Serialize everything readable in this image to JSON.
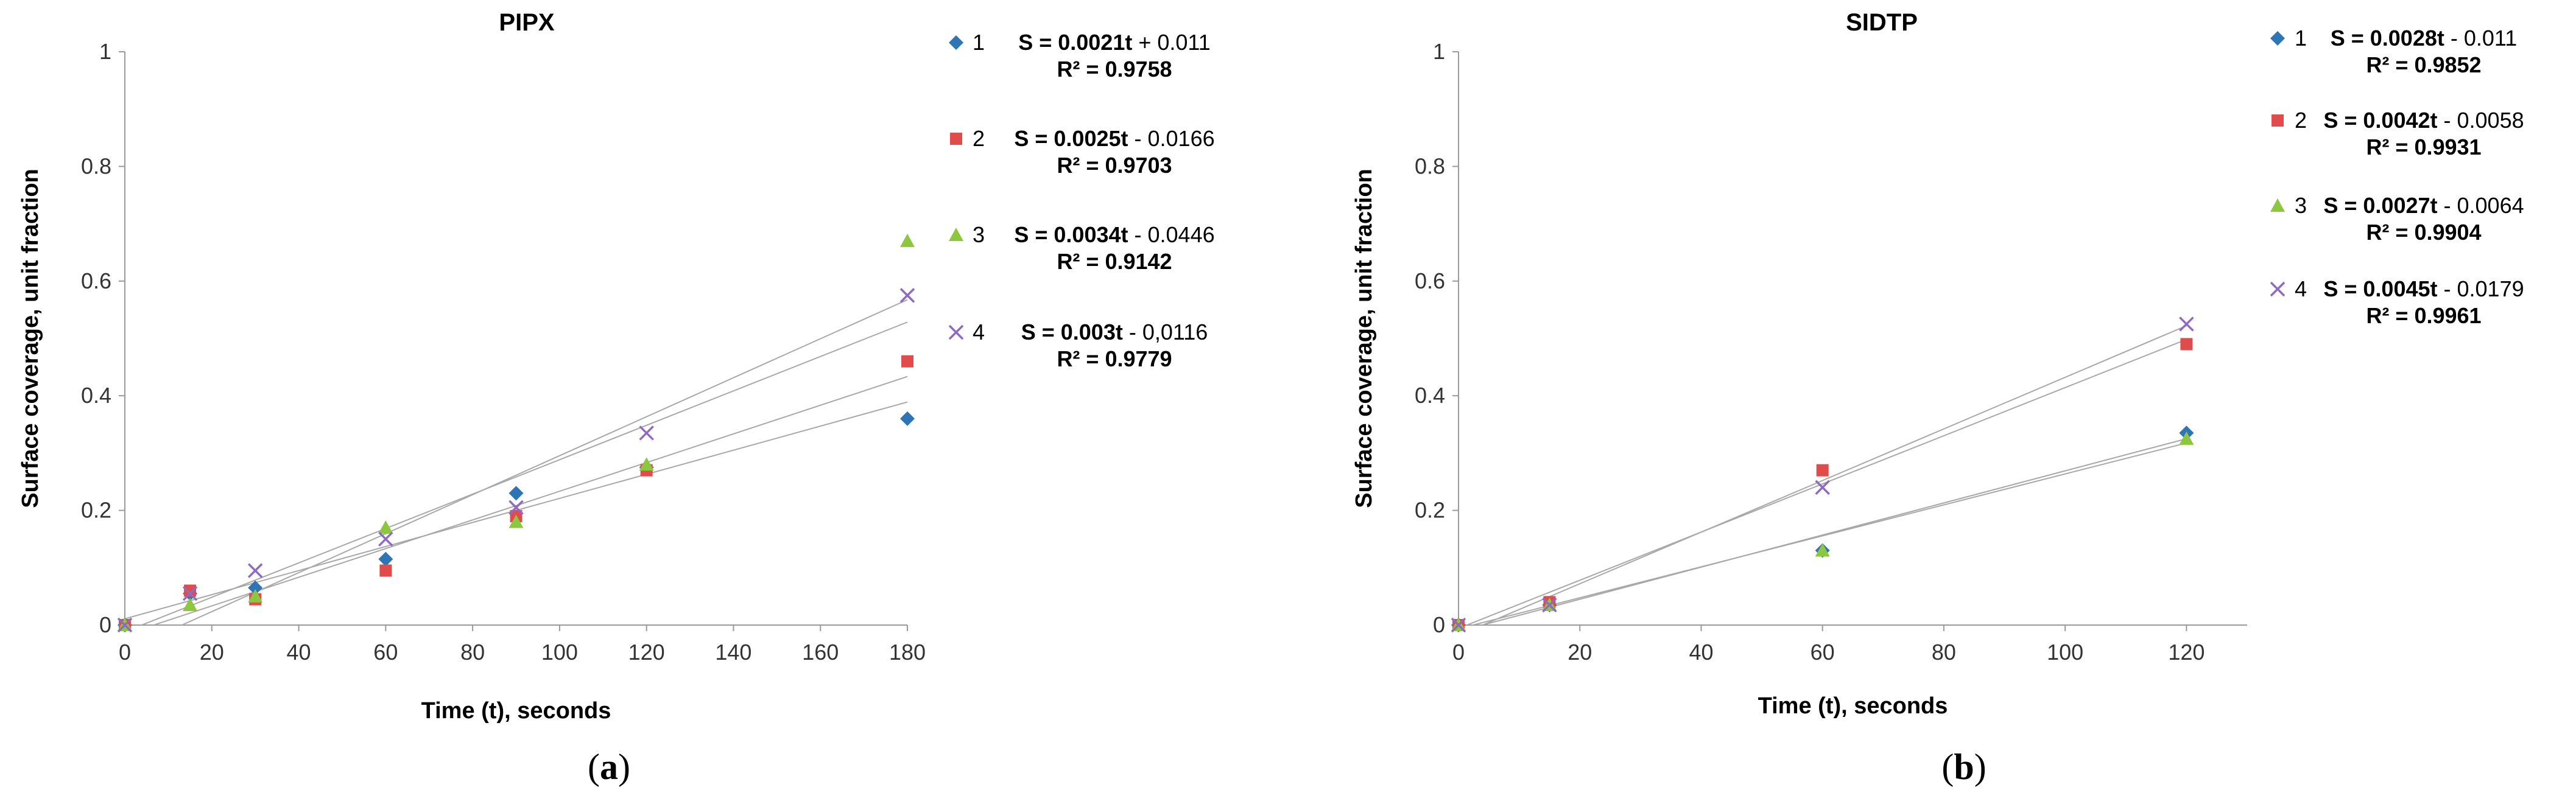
{
  "panels": [
    {
      "label_open": "(",
      "label_letter": "a",
      "label_close": ")",
      "chart_data": {
        "type": "scatter",
        "title": "PIPX",
        "xlabel": "Time (t), seconds",
        "ylabel": "Surface coverage,  unit fraction",
        "xlim": [
          0,
          180
        ],
        "ylim": [
          0,
          1
        ],
        "xticks": [
          0,
          20,
          40,
          60,
          80,
          100,
          120,
          140,
          160,
          180
        ],
        "yticks": [
          0,
          0.2,
          0.4,
          0.6,
          0.8,
          1
        ],
        "ytick_labels": [
          "0",
          "0.2",
          "0.4",
          "0.6",
          "0.8",
          "1"
        ],
        "grid": false,
        "legend_position": "right",
        "series": [
          {
            "name": "1",
            "marker": "diamond",
            "color": "#2e75b6",
            "points": [
              [
                0,
                0
              ],
              [
                15,
                0.055
              ],
              [
                30,
                0.065
              ],
              [
                60,
                0.115
              ],
              [
                90,
                0.23
              ],
              [
                120,
                0.275
              ],
              [
                180,
                0.36
              ]
            ],
            "fit": {
              "slope": 0.0021,
              "intercept": 0.011
            },
            "equation_lhs": "S = ",
            "equation_slope": "0.0021t",
            "equation_rest": " + 0.011",
            "r2": "R² = 0.9758"
          },
          {
            "name": "2",
            "marker": "square",
            "color": "#e04b4b",
            "points": [
              [
                0,
                0
              ],
              [
                15,
                0.06
              ],
              [
                30,
                0.045
              ],
              [
                60,
                0.095
              ],
              [
                90,
                0.19
              ],
              [
                120,
                0.27
              ],
              [
                180,
                0.46
              ]
            ],
            "fit": {
              "slope": 0.0025,
              "intercept": -0.0166
            },
            "equation_lhs": "S = ",
            "equation_slope": "0.0025t",
            "equation_rest": " - 0.0166",
            "r2": "R² = 0.9703"
          },
          {
            "name": "3",
            "marker": "triangle",
            "color": "#8dc63f",
            "points": [
              [
                0,
                0
              ],
              [
                15,
                0.035
              ],
              [
                30,
                0.05
              ],
              [
                60,
                0.17
              ],
              [
                90,
                0.18
              ],
              [
                120,
                0.28
              ],
              [
                180,
                0.67
              ]
            ],
            "fit": {
              "slope": 0.0034,
              "intercept": -0.0446
            },
            "equation_lhs": "S = ",
            "equation_slope": "0.0034t",
            "equation_rest": " - 0.0446",
            "r2": "R² = 0.9142"
          },
          {
            "name": "4",
            "marker": "x",
            "color": "#8e6bbf",
            "points": [
              [
                0,
                0
              ],
              [
                15,
                0.055
              ],
              [
                30,
                0.095
              ],
              [
                60,
                0.15
              ],
              [
                90,
                0.205
              ],
              [
                120,
                0.335
              ],
              [
                180,
                0.575
              ]
            ],
            "fit": {
              "slope": 0.003,
              "intercept": -0.0116
            },
            "equation_lhs": "S = ",
            "equation_slope": "0.003t",
            "equation_rest": " - 0,0116",
            "r2": "R² = 0.9779"
          }
        ]
      }
    },
    {
      "label_open": "(",
      "label_letter": "b",
      "label_close": ")",
      "chart_data": {
        "type": "scatter",
        "title": "SIDTP",
        "xlabel": "Time (t), seconds",
        "ylabel": "Surface coverage, unit fraction",
        "xlim": [
          0,
          130
        ],
        "ylim": [
          0,
          1
        ],
        "xticks": [
          0,
          20,
          40,
          60,
          80,
          100,
          120
        ],
        "yticks": [
          0,
          0.2,
          0.4,
          0.6,
          0.8,
          1
        ],
        "ytick_labels": [
          "0",
          "0.2",
          "0.4",
          "0.6",
          "0.8",
          "1"
        ],
        "grid": false,
        "legend_position": "right",
        "series": [
          {
            "name": "1",
            "marker": "diamond",
            "color": "#2e75b6",
            "points": [
              [
                0,
                0
              ],
              [
                15,
                0.035
              ],
              [
                60,
                0.13
              ],
              [
                120,
                0.335
              ]
            ],
            "fit": {
              "slope": 0.0028,
              "intercept": -0.011
            },
            "equation_lhs": "S = ",
            "equation_slope": "0.0028t",
            "equation_rest": " - 0.011",
            "r2": "R² = 0.9852"
          },
          {
            "name": "2",
            "marker": "square",
            "color": "#e04b4b",
            "points": [
              [
                0,
                0
              ],
              [
                15,
                0.04
              ],
              [
                60,
                0.27
              ],
              [
                120,
                0.49
              ]
            ],
            "fit": {
              "slope": 0.0042,
              "intercept": -0.0058
            },
            "equation_lhs": "S = ",
            "equation_slope": "0.0042t",
            "equation_rest": " - 0.0058",
            "r2": "R² = 0.9931"
          },
          {
            "name": "3",
            "marker": "triangle",
            "color": "#8dc63f",
            "points": [
              [
                0,
                0
              ],
              [
                15,
                0.035
              ],
              [
                60,
                0.13
              ],
              [
                120,
                0.325
              ]
            ],
            "fit": {
              "slope": 0.0027,
              "intercept": -0.0064
            },
            "equation_lhs": "S = ",
            "equation_slope": "0.0027t",
            "equation_rest": " - 0.0064",
            "r2": "R² = 0.9904"
          },
          {
            "name": "4",
            "marker": "x",
            "color": "#8e6bbf",
            "points": [
              [
                0,
                0
              ],
              [
                15,
                0.035
              ],
              [
                60,
                0.24
              ],
              [
                120,
                0.525
              ]
            ],
            "fit": {
              "slope": 0.0045,
              "intercept": -0.0179
            },
            "equation_lhs": "S = ",
            "equation_slope": "0.0045t",
            "equation_rest": " - 0.0179",
            "r2": "R² = 0.9961"
          }
        ]
      }
    }
  ]
}
